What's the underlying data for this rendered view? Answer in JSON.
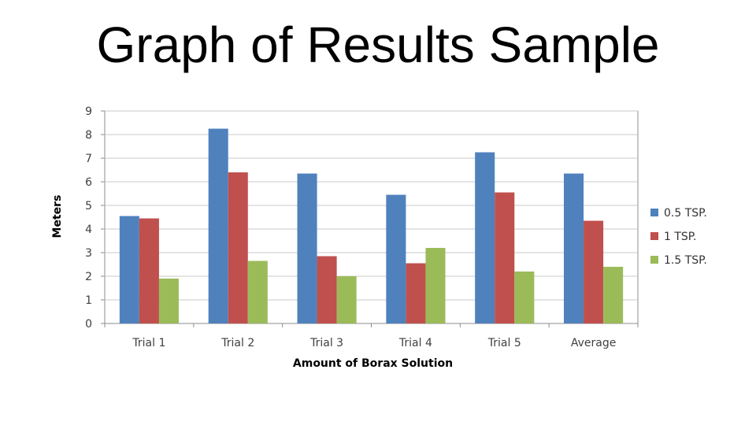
{
  "slide": {
    "title": "Graph of Results Sample"
  },
  "chart_data": {
    "type": "bar",
    "categories": [
      "Trial 1",
      "Trial 2",
      "Trial 3",
      "Trial 4",
      "Trial 5",
      "Average"
    ],
    "series": [
      {
        "name": "0.5 TSP.",
        "color": "#4F81BD",
        "values": [
          4.55,
          8.25,
          6.35,
          5.45,
          7.25,
          6.35
        ]
      },
      {
        "name": "1 TSP.",
        "color": "#C0504D",
        "values": [
          4.45,
          6.4,
          2.85,
          2.55,
          5.55,
          4.35
        ]
      },
      {
        "name": "1.5 TSP.",
        "color": "#9BBB59",
        "values": [
          1.9,
          2.65,
          2.0,
          3.2,
          2.2,
          2.4
        ]
      }
    ],
    "xlabel": "Amount of Borax Solution",
    "ylabel": "Meters",
    "ylim": [
      0,
      9
    ],
    "yticks": [
      "0",
      "1",
      "2",
      "3",
      "4",
      "5",
      "6",
      "7",
      "8",
      "9"
    ],
    "grid": true,
    "legend_position": "right"
  }
}
